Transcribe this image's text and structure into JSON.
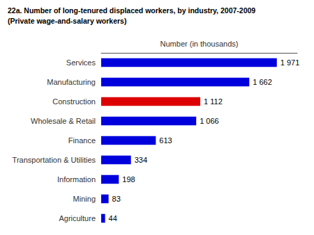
{
  "chart_data": {
    "type": "bar",
    "orientation": "horizontal",
    "title": "22a. Number of long-tenured displaced workers, by industry, 2007-2009",
    "subtitle": "(Private wage-and-salary workers)",
    "xlabel": "Number (in thousands)",
    "categories": [
      "Services",
      "Manufacturing",
      "Construction",
      "Wholesale & Retail",
      "Finance",
      "Transportation & Utilities",
      "Information",
      "Mining",
      "Agriculture"
    ],
    "values": [
      1971,
      1662,
      1112,
      1066,
      613,
      334,
      198,
      83,
      44
    ],
    "value_labels": [
      "1 971",
      "1 662",
      "1 112",
      "1 066",
      "613",
      "334",
      "198",
      "83",
      "44"
    ],
    "colors": [
      "#0000dd",
      "#0000dd",
      "#dd0000",
      "#0000dd",
      "#0000dd",
      "#0000dd",
      "#0000dd",
      "#0000dd",
      "#0000dd"
    ],
    "data_labels": true,
    "xlim": [
      0,
      2200
    ],
    "grid": false,
    "tick_labels": "y"
  }
}
